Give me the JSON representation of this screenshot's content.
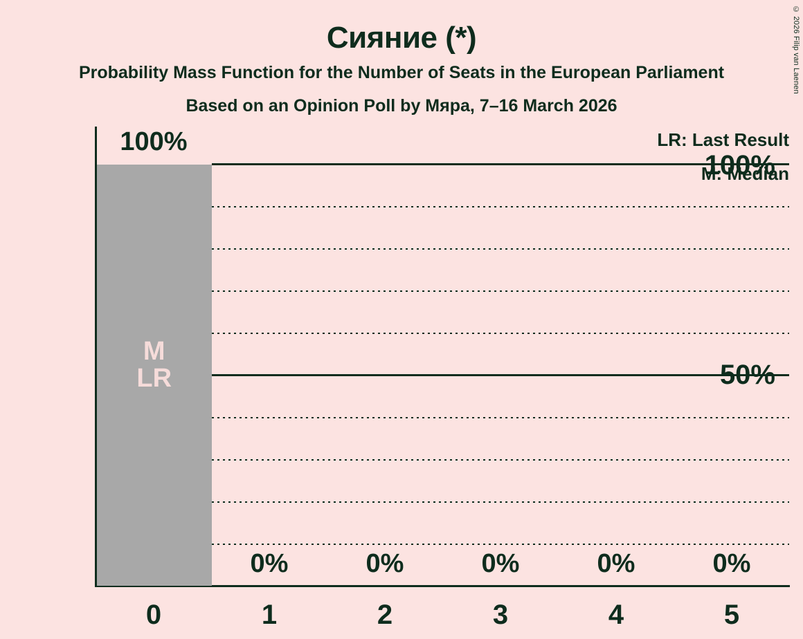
{
  "copyright": "© 2026 Filip van Laenen",
  "colors": {
    "background": "#fce3e1",
    "text": "#0e2c1d",
    "bar": "#a8a8a8",
    "bar_marker_text": "#f6dcda"
  },
  "chart_data": {
    "type": "bar",
    "title": "Сияние (*)",
    "subtitle": "Probability Mass Function for the Number of Seats in the European Parliament",
    "poll_details": "Based on an Opinion Poll by Мяра, 7–16 March 2026",
    "categories": [
      "0",
      "1",
      "2",
      "3",
      "4",
      "5"
    ],
    "values": [
      100,
      0,
      0,
      0,
      0,
      0
    ],
    "value_labels": [
      "100%",
      "0%",
      "0%",
      "0%",
      "0%",
      "0%"
    ],
    "ylim": [
      0,
      100
    ],
    "y_tick_labels": [
      "100%",
      "50%"
    ],
    "gridlines": {
      "dotted_percent": [
        90,
        80,
        70,
        60,
        40,
        30,
        20,
        10
      ],
      "solid_percent": [
        100,
        50
      ]
    },
    "legend": [
      "LR: Last Result",
      "M: Median"
    ],
    "bar_markers": {
      "bar_category": "0",
      "labels": [
        "M",
        "LR"
      ]
    },
    "median_seats": 0,
    "last_result_seats": 0
  }
}
